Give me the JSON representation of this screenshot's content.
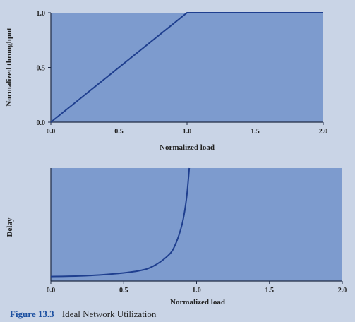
{
  "colors": {
    "page_background": "#c9d4e6",
    "plot_background": "#7d9bce",
    "line": "#1f3f8f",
    "axis": "#1f2a44",
    "caption_accent": "#1b4fa0"
  },
  "caption": {
    "figure_number": "Figure 13.3",
    "title": "Ideal Network Utilization"
  },
  "chart_data": [
    {
      "type": "line",
      "title": "",
      "xlabel": "Normalized load",
      "ylabel": "Normalized throughput",
      "xlim": [
        0,
        2.0
      ],
      "ylim": [
        0,
        1.0
      ],
      "xticks": [
        "0.0",
        "0.5",
        "1.0",
        "1.5",
        "2.0"
      ],
      "yticks": [
        "0.0",
        "0.5",
        "1.0"
      ],
      "grid": false,
      "series": [
        {
          "x": [
            0.0,
            1.0,
            2.0
          ],
          "y": [
            0.0,
            1.0,
            1.0
          ]
        }
      ]
    },
    {
      "type": "line",
      "title": "",
      "xlabel": "Normalized load",
      "ylabel": "Delay",
      "xlim": [
        0,
        2.0
      ],
      "ylim": [
        0,
        1.0
      ],
      "xticks": [
        "0.0",
        "0.5",
        "1.0",
        "1.5",
        "2.0"
      ],
      "yticks": [],
      "grid": false,
      "series": [
        {
          "x": [
            0.0,
            0.2,
            0.4,
            0.6,
            0.7,
            0.8,
            0.85,
            0.9,
            0.93,
            0.95
          ],
          "y": [
            0.04,
            0.045,
            0.06,
            0.09,
            0.13,
            0.22,
            0.31,
            0.5,
            0.72,
            1.0
          ]
        }
      ]
    }
  ]
}
